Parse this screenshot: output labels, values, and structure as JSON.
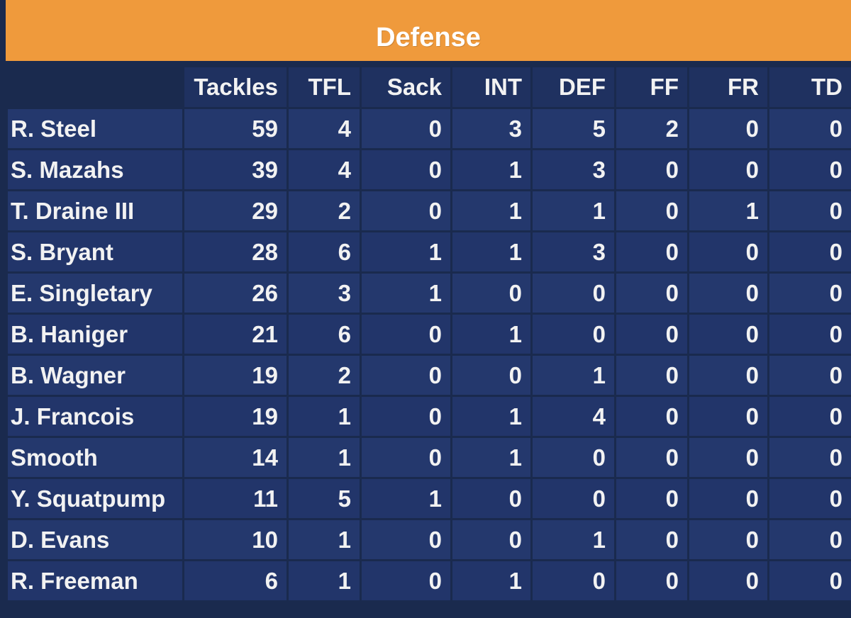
{
  "title": "Defense",
  "colors": {
    "title_bar": "#ef9a3c",
    "background": "#1a2a4e",
    "cell": "#24386d",
    "text": "#f2f2f2"
  },
  "columns": [
    "Tackles",
    "TFL",
    "Sack",
    "INT",
    "DEF",
    "FF",
    "FR",
    "TD"
  ],
  "rows": [
    {
      "name": "R. Steel",
      "values": [
        "59",
        "4",
        "0",
        "3",
        "5",
        "2",
        "0",
        "0"
      ]
    },
    {
      "name": "S. Mazahs",
      "values": [
        "39",
        "4",
        "0",
        "1",
        "3",
        "0",
        "0",
        "0"
      ]
    },
    {
      "name": "T. Draine III",
      "values": [
        "29",
        "2",
        "0",
        "1",
        "1",
        "0",
        "1",
        "0"
      ]
    },
    {
      "name": "S. Bryant",
      "values": [
        "28",
        "6",
        "1",
        "1",
        "3",
        "0",
        "0",
        "0"
      ]
    },
    {
      "name": "E. Singletary",
      "values": [
        "26",
        "3",
        "1",
        "0",
        "0",
        "0",
        "0",
        "0"
      ]
    },
    {
      "name": "B. Haniger",
      "values": [
        "21",
        "6",
        "0",
        "1",
        "0",
        "0",
        "0",
        "0"
      ]
    },
    {
      "name": "B. Wagner",
      "values": [
        "19",
        "2",
        "0",
        "0",
        "1",
        "0",
        "0",
        "0"
      ]
    },
    {
      "name": "J. Francois",
      "values": [
        "19",
        "1",
        "0",
        "1",
        "4",
        "0",
        "0",
        "0"
      ]
    },
    {
      "name": "Smooth",
      "values": [
        "14",
        "1",
        "0",
        "1",
        "0",
        "0",
        "0",
        "0"
      ]
    },
    {
      "name": "Y. Squatpump",
      "values": [
        "11",
        "5",
        "1",
        "0",
        "0",
        "0",
        "0",
        "0"
      ]
    },
    {
      "name": "D. Evans",
      "values": [
        "10",
        "1",
        "0",
        "0",
        "1",
        "0",
        "0",
        "0"
      ]
    },
    {
      "name": "R. Freeman",
      "values": [
        "6",
        "1",
        "0",
        "1",
        "0",
        "0",
        "0",
        "0"
      ]
    }
  ]
}
